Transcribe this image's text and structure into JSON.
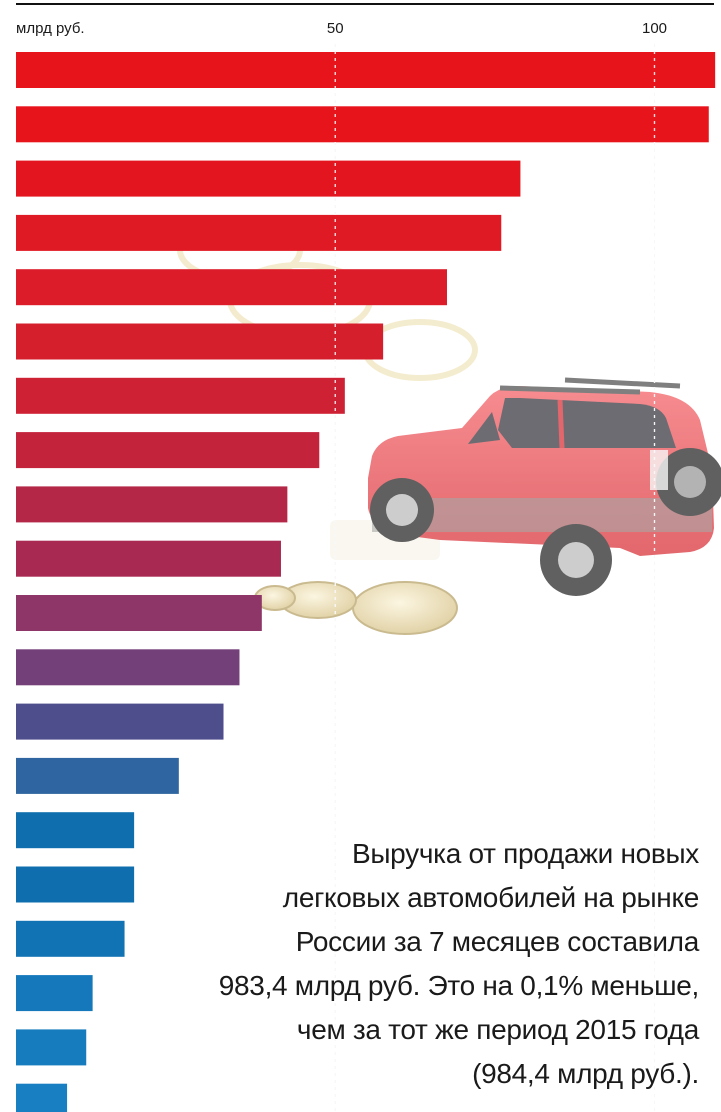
{
  "chart_data": {
    "type": "bar",
    "orientation": "horizontal",
    "unit_label": "млрд руб.",
    "x_ticks": [
      50,
      100
    ],
    "xlim": [
      0,
      110
    ],
    "values": [
      109.5,
      108.5,
      79,
      76,
      67.5,
      57.5,
      51.5,
      47.5,
      42.5,
      41.5,
      38.5,
      35,
      32.5,
      25.5,
      18.5,
      18.5,
      17,
      12,
      11,
      8
    ],
    "bar_colors": [
      "#e8141c",
      "#e8141c",
      "#e3161f",
      "#e01a24",
      "#dc1c28",
      "#d61f2c",
      "#cf2134",
      "#c4233c",
      "#b42747",
      "#a82a52",
      "#8e3668",
      "#74407a",
      "#4f4e8c",
      "#2f65a0",
      "#0f6fae",
      "#0f6fae",
      "#1173b3",
      "#1478bb",
      "#167cbe",
      "#1880c2"
    ],
    "grid": true,
    "grid_style": "dotted-white",
    "legend": "none"
  },
  "caption": {
    "lines": [
      "Выручка от продажи новых",
      "легковых автомобилей на рынке",
      "России за 7 месяцев составила",
      "983,4 млрд руб. Это на 0,1% меньше,",
      "чем за тот же период 2015 года",
      "(984,4 млрд руб.)."
    ]
  },
  "image": {
    "subject": "red-suv-and-coins"
  }
}
